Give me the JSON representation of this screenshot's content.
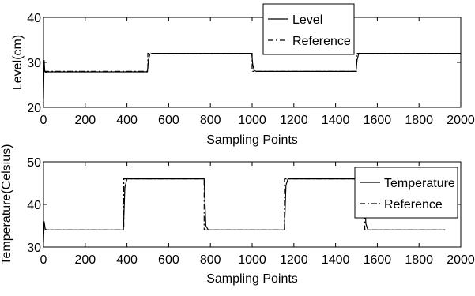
{
  "chart_data": [
    {
      "type": "line",
      "xlabel": "Sampling Points",
      "ylabel": "Level(cm)",
      "xlim": [
        0,
        2000
      ],
      "ylim": [
        20,
        40
      ],
      "xticks": [
        0,
        200,
        400,
        600,
        800,
        1000,
        1200,
        1400,
        1600,
        1800,
        2000
      ],
      "yticks": [
        20,
        30,
        40
      ],
      "x_tick_labels": [
        "0",
        "200",
        "400",
        "600",
        "800",
        "1000",
        "1200",
        "1400",
        "1600",
        "1800",
        "2000"
      ],
      "y_tick_labels": [
        "20",
        "30",
        "40"
      ],
      "legend_position": "top-right",
      "series": [
        {
          "name": "Level",
          "style": "solid",
          "x": [
            0,
            3,
            6,
            10,
            20,
            498,
            503,
            510,
            520,
            998,
            1003,
            1010,
            1020,
            1498,
            1503,
            1510,
            1520,
            2000
          ],
          "y": [
            22,
            30.5,
            28,
            27.8,
            27.9,
            27.9,
            30.5,
            31.8,
            32,
            32,
            29.5,
            28.2,
            28,
            28,
            30.5,
            31.8,
            32,
            32
          ]
        },
        {
          "name": "Reference",
          "style": "dashdot",
          "x": [
            0,
            500,
            500,
            1000,
            1000,
            1500,
            1500,
            2000
          ],
          "y": [
            28,
            28,
            32,
            32,
            28,
            28,
            32,
            32
          ]
        }
      ]
    },
    {
      "type": "line",
      "xlabel": "Sampling Points",
      "ylabel": "Temperature(Celsius)",
      "xlim": [
        0,
        2000
      ],
      "ylim": [
        30,
        50
      ],
      "xticks": [
        0,
        200,
        400,
        600,
        800,
        1000,
        1200,
        1400,
        1600,
        1800,
        2000
      ],
      "yticks": [
        30,
        40,
        50
      ],
      "x_tick_labels": [
        "0",
        "200",
        "400",
        "600",
        "800",
        "1000",
        "1200",
        "1400",
        "1600",
        "1800",
        "2000"
      ],
      "y_tick_labels": [
        "30",
        "40",
        "50"
      ],
      "legend_position": "top-right",
      "series": [
        {
          "name": "Temperature",
          "style": "solid",
          "x": [
            0,
            3,
            8,
            15,
            25,
            383,
            390,
            400,
            770,
            778,
            790,
            1155,
            1162,
            1172,
            1537,
            1545,
            1555,
            1925
          ],
          "y": [
            31,
            36,
            34.3,
            34,
            34,
            34,
            44,
            46,
            46,
            35,
            34,
            34,
            44.5,
            46,
            46,
            35.5,
            34,
            34
          ]
        },
        {
          "name": "Reference",
          "style": "dashdot",
          "x": [
            0,
            385,
            385,
            770,
            770,
            1155,
            1155,
            1540,
            1540,
            1925
          ],
          "y": [
            34,
            34,
            46,
            46,
            34,
            34,
            46,
            46,
            34,
            34
          ]
        }
      ]
    }
  ]
}
